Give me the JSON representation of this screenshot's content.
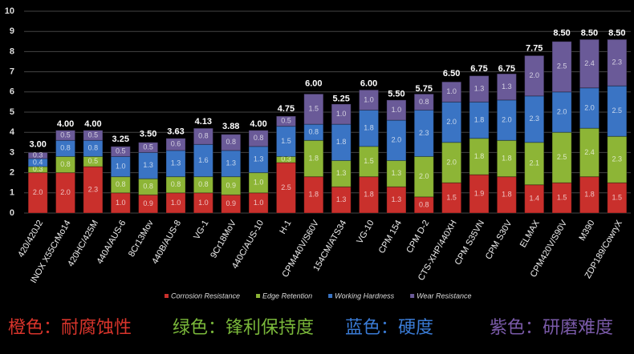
{
  "chart_data": {
    "type": "stacked-bar",
    "categories": [
      "420/420J2",
      "INOX X55CrMo14",
      "420HC/425M",
      "440A/AUS-6",
      "8Cr13Mov",
      "440B/AUS-8",
      "VG-1",
      "9Cr18MoV",
      "440C/AUS-10",
      "H-1",
      "CPM440V/S60V",
      "154CM/ATS34",
      "VG-10",
      "CPM 154",
      "CPM D-2",
      "CTS-XHP/440XH",
      "CPM S35VN",
      "CPM S30V",
      "ELMAX",
      "CPM420V/S90V",
      "M390",
      "ZDP189/CowryX"
    ],
    "series": [
      {
        "name": "Corrosion Resistance",
        "color": "#c9302c",
        "values": [
          2.0,
          2.0,
          2.3,
          1.0,
          0.9,
          1.0,
          1.0,
          0.9,
          1.0,
          2.5,
          1.8,
          1.3,
          1.8,
          1.3,
          0.8,
          1.5,
          1.9,
          1.8,
          1.4,
          1.5,
          1.8,
          1.5
        ],
        "value_labels": [
          "2.0",
          "2.0",
          "2.3",
          "1.0",
          "0.9",
          "1.0",
          "1.0",
          "0.9",
          "1.0",
          "2.5",
          "1.8",
          "1.3",
          "1.8",
          "1.3",
          "0.8",
          "1.5",
          "1.9",
          "1.8",
          "1.4",
          "1.5",
          "1.8",
          "1.5"
        ]
      },
      {
        "name": "Edge Retention",
        "color": "#8db536",
        "values": [
          0.3,
          0.8,
          0.5,
          0.8,
          0.8,
          0.8,
          0.8,
          0.9,
          1.0,
          0.3,
          1.8,
          1.3,
          1.5,
          1.3,
          2.0,
          2.0,
          1.8,
          1.8,
          2.1,
          2.5,
          2.4,
          2.3
        ],
        "value_labels": [
          "0.3",
          "0.8",
          "0.5",
          "0.8",
          "0.8",
          "0.8",
          "0.8",
          "0.9",
          "1.0",
          "0.3",
          "1.8",
          "1.3",
          "1.5",
          "1.3",
          "2.0",
          "2.0",
          "1.8",
          "1.8",
          "2.1",
          "2.5",
          "2.4",
          "2.3"
        ]
      },
      {
        "name": "Working Hardness",
        "color": "#3a74c4",
        "values": [
          0.4,
          0.8,
          0.8,
          1.0,
          1.3,
          1.3,
          1.6,
          1.3,
          1.3,
          1.5,
          0.8,
          1.8,
          1.8,
          2.0,
          2.3,
          2.0,
          1.8,
          2.0,
          2.3,
          2.0,
          2.0,
          2.5
        ],
        "value_labels": [
          "0.4",
          "0.8",
          "0.8",
          "1.0",
          "1.3",
          "1.3",
          "1.6",
          "1.3",
          "1.3",
          "1.5",
          "0.8",
          "1.8",
          "1.8",
          "2.0",
          "2.3",
          "2.0",
          "1.8",
          "2.0",
          "2.3",
          "2.0",
          "2.0",
          "2.5"
        ]
      },
      {
        "name": "Wear Resistance",
        "color": "#6a5a98",
        "values": [
          0.3,
          0.5,
          0.5,
          0.5,
          0.5,
          0.6,
          0.8,
          0.8,
          0.8,
          0.5,
          1.5,
          1.0,
          1.0,
          1.0,
          0.8,
          1.0,
          1.3,
          1.3,
          2.0,
          2.5,
          2.4,
          2.3
        ],
        "value_labels": [
          "0.3",
          "0.5",
          "0.5",
          "0.5",
          "0.5",
          "0.6",
          "0.8",
          "0.8",
          "0.8",
          "0.5",
          "1.5",
          "1.0",
          "1.0",
          "1.0",
          "0.8",
          "1.0",
          "1.3",
          "1.3",
          "2.0",
          "2.5",
          "2.4",
          "2.3"
        ]
      }
    ],
    "totals": {
      "values": [
        3,
        4,
        4,
        3.25,
        3.5,
        3.63,
        4.13,
        3.88,
        4,
        4.75,
        6,
        5.25,
        6,
        5.5,
        5.75,
        6.5,
        6.75,
        6.75,
        7.75,
        8.5,
        8.5,
        8.5
      ],
      "value_labels": [
        "3.00",
        "4.00",
        "4.00",
        "3.25",
        "3.50",
        "3.63",
        "4.13",
        "3.88",
        "4.00",
        "4.75",
        "6.00",
        "5.25",
        "6.00",
        "5.50",
        "5.75",
        "6.50",
        "6.75",
        "6.75",
        "7.75",
        "8.50",
        "8.50",
        "8.50"
      ]
    },
    "ylim": [
      0,
      10
    ],
    "yticks": [
      0,
      1,
      2,
      3,
      4,
      5,
      6,
      7,
      8,
      9,
      10
    ],
    "grid": true,
    "annotations": [
      {
        "text": "橙色：耐腐蚀性",
        "color": "#d8342b"
      },
      {
        "text": "绿色：锋利保持度",
        "color": "#7ab83a"
      },
      {
        "text": "蓝色：硬度",
        "color": "#3a7bd5"
      },
      {
        "text": "紫色：研磨难度",
        "color": "#7a5aa8"
      }
    ]
  }
}
